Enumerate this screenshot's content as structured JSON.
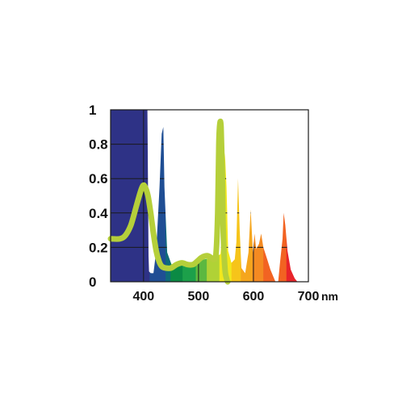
{
  "chart_data": {
    "type": "area",
    "title": "",
    "xlabel": "",
    "ylabel": "",
    "xlim": [
      340,
      700
    ],
    "ylim": [
      0,
      1
    ],
    "x_unit": "nm",
    "grid": true,
    "y_ticks": [
      {
        "value": 1,
        "label": "1"
      },
      {
        "value": 0.8,
        "label": "0.8"
      },
      {
        "value": 0.6,
        "label": "0.6"
      },
      {
        "value": 0.4,
        "label": "0.4"
      },
      {
        "value": 0.2,
        "label": "0.2"
      },
      {
        "value": 0,
        "label": "0"
      }
    ],
    "x_ticks": [
      {
        "value": 400,
        "label": "400"
      },
      {
        "value": 500,
        "label": "500"
      },
      {
        "value": 600,
        "label": "600"
      },
      {
        "value": 700,
        "label": "700"
      }
    ],
    "spectrum_bands": [
      {
        "from": 340,
        "to": 411,
        "color": "#2e3286"
      },
      {
        "from": 411,
        "to": 440,
        "color": "#1f4e94"
      },
      {
        "from": 440,
        "to": 449,
        "color": "#0f6b7a"
      },
      {
        "from": 449,
        "to": 471,
        "color": "#0b8a44"
      },
      {
        "from": 471,
        "to": 495,
        "color": "#1ca04a"
      },
      {
        "from": 495,
        "to": 515,
        "color": "#5cb840"
      },
      {
        "from": 515,
        "to": 538,
        "color": "#b0d236"
      },
      {
        "from": 538,
        "to": 560,
        "color": "#f2e81c"
      },
      {
        "from": 560,
        "to": 577,
        "color": "#f6c41a"
      },
      {
        "from": 577,
        "to": 598,
        "color": "#f5a61d"
      },
      {
        "from": 598,
        "to": 618,
        "color": "#f48a22"
      },
      {
        "from": 618,
        "to": 660,
        "color": "#f26322"
      },
      {
        "from": 660,
        "to": 700,
        "color": "#e8242a"
      }
    ],
    "series": [
      {
        "kind": "uncovered_white_area",
        "color": "#ffffff",
        "points": [
          [
            340,
            1.0
          ],
          [
            407,
            1.0
          ],
          [
            409,
            0.15
          ],
          [
            410,
            0.06
          ],
          [
            413,
            0.05
          ],
          [
            418,
            0.05
          ],
          [
            423,
            0.18
          ],
          [
            429,
            0.55
          ],
          [
            433,
            0.86
          ],
          [
            436,
            0.9
          ],
          [
            438,
            0.55
          ],
          [
            443,
            0.17
          ],
          [
            451,
            0.1
          ],
          [
            465,
            0.11
          ],
          [
            480,
            0.11
          ],
          [
            495,
            0.12
          ],
          [
            510,
            0.13
          ],
          [
            525,
            0.14
          ],
          [
            540,
            0.16
          ],
          [
            542,
            0.25
          ],
          [
            545,
            0.55
          ],
          [
            548,
            0.75
          ],
          [
            551,
            0.55
          ],
          [
            554,
            0.18
          ],
          [
            560,
            0.11
          ],
          [
            566,
            0.13
          ],
          [
            569,
            0.23
          ],
          [
            572,
            0.6
          ],
          [
            575,
            0.3
          ],
          [
            578,
            0.08
          ],
          [
            585,
            0.05
          ],
          [
            591,
            0.17
          ],
          [
            595,
            0.42
          ],
          [
            599,
            0.17
          ],
          [
            602,
            0.28
          ],
          [
            605,
            0.19
          ],
          [
            610,
            0.22
          ],
          [
            614,
            0.28
          ],
          [
            618,
            0.2
          ],
          [
            625,
            0.13
          ],
          [
            631,
            0.07
          ],
          [
            640,
            0.0
          ],
          [
            645,
            0.0
          ],
          [
            648,
            0.1
          ],
          [
            653,
            0.25
          ],
          [
            655,
            0.4
          ],
          [
            658,
            0.33
          ],
          [
            662,
            0.18
          ],
          [
            668,
            0.07
          ],
          [
            675,
            0.02
          ],
          [
            680,
            0.0
          ],
          [
            700,
            0.0
          ],
          [
            700,
            1.0
          ]
        ]
      },
      {
        "kind": "curve",
        "color": "#b5cf3a",
        "points": [
          [
            340,
            0.25
          ],
          [
            357,
            0.25
          ],
          [
            367,
            0.27
          ],
          [
            377,
            0.33
          ],
          [
            386,
            0.43
          ],
          [
            394,
            0.52
          ],
          [
            399,
            0.56
          ],
          [
            403,
            0.55
          ],
          [
            408,
            0.5
          ],
          [
            413,
            0.4
          ],
          [
            418,
            0.28
          ],
          [
            423,
            0.18
          ],
          [
            428,
            0.12
          ],
          [
            433,
            0.09
          ],
          [
            440,
            0.08
          ],
          [
            450,
            0.08
          ],
          [
            460,
            0.1
          ],
          [
            470,
            0.11
          ],
          [
            480,
            0.1
          ],
          [
            490,
            0.1
          ],
          [
            498,
            0.12
          ],
          [
            505,
            0.14
          ],
          [
            512,
            0.15
          ],
          [
            518,
            0.15
          ],
          [
            523,
            0.14
          ],
          [
            528,
            0.13
          ],
          [
            532,
            0.17
          ],
          [
            535,
            0.4
          ],
          [
            537,
            0.8
          ],
          [
            539,
            0.92
          ],
          [
            541,
            0.9
          ],
          [
            543,
            0.66
          ],
          [
            545,
            0.3
          ],
          [
            548,
            0.08
          ],
          [
            551,
            0.02
          ],
          [
            553,
            0.0
          ]
        ]
      }
    ]
  }
}
